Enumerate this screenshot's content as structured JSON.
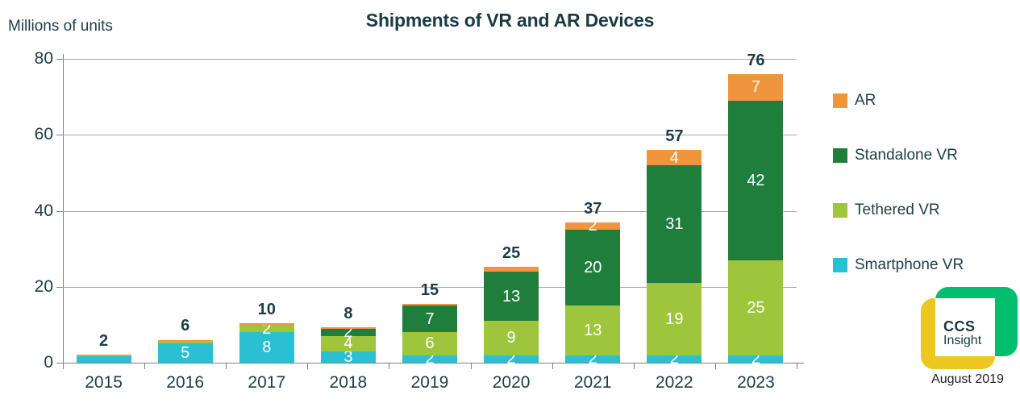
{
  "header": {
    "title": "Shipments of VR and AR Devices",
    "units_label": "Millions of units"
  },
  "chart_data": {
    "type": "bar",
    "stacked": true,
    "title": "Shipments of VR and AR Devices",
    "ylabel": "Millions of units",
    "xlabel": "",
    "categories": [
      "2015",
      "2016",
      "2017",
      "2018",
      "2019",
      "2020",
      "2021",
      "2022",
      "2023"
    ],
    "series": [
      {
        "name": "Smartphone VR",
        "color": "#2BBFD4",
        "values": [
          1.8,
          5,
          8,
          3,
          2,
          2,
          2,
          2,
          2
        ],
        "labels": [
          "",
          "5",
          "8",
          "3",
          "2",
          "2",
          "2",
          "2",
          "2"
        ]
      },
      {
        "name": "Tethered VR",
        "color": "#9EC53C",
        "values": [
          0.3,
          0.9,
          2,
          4,
          6,
          9,
          13,
          19,
          25
        ],
        "labels": [
          "",
          "",
          "2",
          "4",
          "6",
          "9",
          "13",
          "19",
          "25"
        ]
      },
      {
        "name": "Standalone VR",
        "color": "#1F7E3C",
        "values": [
          0,
          0,
          0,
          2,
          7,
          13,
          20,
          31,
          42
        ],
        "labels": [
          "",
          "",
          "",
          "2",
          "7",
          "13",
          "20",
          "31",
          "42"
        ]
      },
      {
        "name": "AR",
        "color": "#F0953E",
        "values": [
          0.1,
          0.15,
          0.3,
          0.3,
          0.4,
          1.2,
          2,
          4,
          7
        ],
        "labels": [
          "",
          "",
          "",
          "",
          "",
          "",
          "2",
          "4",
          "7"
        ]
      }
    ],
    "totals": [
      "2",
      "6",
      "10",
      "8",
      "15",
      "25",
      "37",
      "57",
      "76"
    ],
    "yticks": [
      0,
      20,
      40,
      60,
      80
    ],
    "ylim": [
      0,
      80
    ],
    "grid": true,
    "legend_position": "right",
    "colors": {
      "grid": "#A6A6A6",
      "axis": "#808080",
      "tick_label": "#1D3D45",
      "bar_value_text": "#FFFFFF",
      "total_text": "#1D3D45",
      "title_text": "#1B3B43"
    }
  },
  "legend": {
    "items": [
      {
        "label": "AR",
        "color": "#F0953E"
      },
      {
        "label": "Standalone VR",
        "color": "#1F7E3C"
      },
      {
        "label": "Tethered VR",
        "color": "#9EC53C"
      },
      {
        "label": "Smartphone VR",
        "color": "#2BBFD4"
      }
    ]
  },
  "branding": {
    "logo_line1": "CCS",
    "logo_line2": "Insight",
    "date": "August 2019",
    "colors": {
      "green": "#00BE6E",
      "yellow": "#ECC71F",
      "text": "#16383F"
    }
  }
}
